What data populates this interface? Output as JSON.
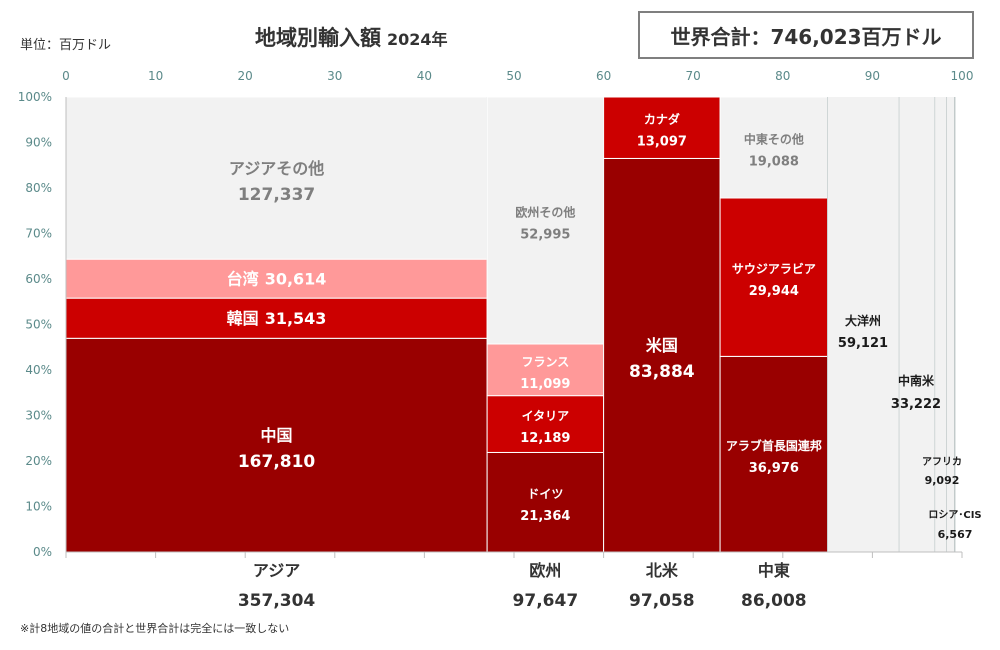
{
  "header": {
    "unit": "単位：百万ドル",
    "title": "地域別輸入額",
    "year": "2024年",
    "total": "世界合計：746,023百万ドル",
    "footnote": "※計8地域の値の合計と世界合計は完全には一致しない"
  },
  "colors": {
    "bg_segment": "#f2f2f2",
    "dark_red": "#990000",
    "red": "#cc0000",
    "pink": "#ff9999",
    "grid_axis": "#bfbfbf",
    "tick_text": "#5b8a8a"
  },
  "chart_data": {
    "type": "mekko",
    "title": "地域別輸入額",
    "x_axis": {
      "min": 0,
      "max": 100,
      "ticks": [
        "0",
        "10",
        "20",
        "30",
        "40",
        "50",
        "60",
        "70",
        "80",
        "90",
        "100"
      ]
    },
    "y_axis": {
      "min": 0,
      "max": 100,
      "ticks": [
        "0%",
        "10%",
        "20%",
        "30%",
        "40%",
        "50%",
        "60%",
        "70%",
        "80%",
        "90%",
        "100%"
      ]
    },
    "regions": [
      {
        "name": "アジア",
        "total": "357,304",
        "x0": 0,
        "x1": 47.0,
        "segments": [
          {
            "name": "中国",
            "value": "167,810",
            "value_num": 167810,
            "color": "dark_red"
          },
          {
            "name": "韓国",
            "value": "31,543",
            "value_num": 31543,
            "color": "red"
          },
          {
            "name": "台湾",
            "value": "30,614",
            "value_num": 30614,
            "color": "pink"
          },
          {
            "name": "アジアその他",
            "value": "127,337",
            "value_num": 127337,
            "color": "bg_segment"
          }
        ]
      },
      {
        "name": "欧州",
        "total": "97,647",
        "x0": 47.0,
        "x1": 60.0,
        "segments": [
          {
            "name": "ドイツ",
            "value": "21,364",
            "value_num": 21364,
            "color": "dark_red"
          },
          {
            "name": "イタリア",
            "value": "12,189",
            "value_num": 12189,
            "color": "red"
          },
          {
            "name": "フランス",
            "value": "11,099",
            "value_num": 11099,
            "color": "pink"
          },
          {
            "name": "欧州その他",
            "value": "52,995",
            "value_num": 52995,
            "color": "bg_segment"
          }
        ]
      },
      {
        "name": "北米",
        "total": "97,058",
        "x0": 60.0,
        "x1": 73.0,
        "segments": [
          {
            "name": "米国",
            "value": "83,884",
            "value_num": 83884,
            "color": "dark_red"
          },
          {
            "name": "カナダ",
            "value": "13,097",
            "value_num": 13097,
            "color": "red"
          }
        ]
      },
      {
        "name": "中東",
        "total": "86,008",
        "x0": 73.0,
        "x1": 85.0,
        "segments": [
          {
            "name": "アラブ首長国連邦",
            "value": "36,976",
            "value_num": 36976,
            "color": "dark_red"
          },
          {
            "name": "サウジアラビア",
            "value": "29,944",
            "value_num": 29944,
            "color": "red"
          },
          {
            "name": "中東その他",
            "value": "19,088",
            "value_num": 19088,
            "color": "bg_segment"
          }
        ]
      },
      {
        "name": "大洋州",
        "total": "59,121",
        "x0": 85.0,
        "x1": 93.0,
        "segments": []
      },
      {
        "name": "中南米",
        "total": "33,222",
        "x0": 93.0,
        "x1": 97.0,
        "segments": []
      },
      {
        "name": "アフリカ",
        "total": "9,092",
        "x0": 97.0,
        "x1": 98.3,
        "segments": []
      },
      {
        "name": "ロシア･CIS",
        "total": "6,567",
        "x0": 98.3,
        "x1": 99.2,
        "segments": []
      }
    ]
  }
}
